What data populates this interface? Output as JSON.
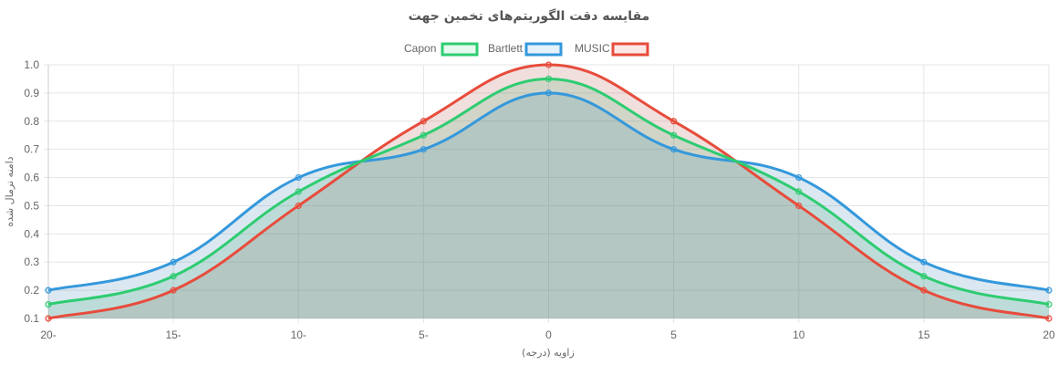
{
  "chart_data": {
    "type": "line",
    "title": "مقایسه دقت الگوریتم‌های تخمین جهت",
    "xlabel": "زاویه (درجه)",
    "ylabel": "دامنه نرمال شده",
    "categories": [
      "20-",
      "15-",
      "10-",
      "5-",
      "0",
      "5",
      "10",
      "15",
      "20"
    ],
    "x": [
      -20,
      -15,
      -10,
      -5,
      0,
      5,
      10,
      15,
      20
    ],
    "ylim": [
      0.1,
      1.0
    ],
    "yticks": [
      "1.0",
      "0.9",
      "0.8",
      "0.7",
      "0.6",
      "0.5",
      "0.4",
      "0.3",
      "0.2",
      "0.1"
    ],
    "grid": true,
    "legend_position": "top-center",
    "series": [
      {
        "name": "MUSIC",
        "color": "#e74c3c",
        "fill": "rgba(231,76,60,0.12)",
        "values": [
          0.1,
          0.2,
          0.5,
          0.8,
          1.0,
          0.8,
          0.5,
          0.2,
          0.1
        ]
      },
      {
        "name": "Bartlett",
        "color": "#3498db",
        "fill": "rgba(52,152,219,0.12)",
        "values": [
          0.2,
          0.3,
          0.6,
          0.7,
          0.9,
          0.7,
          0.6,
          0.3,
          0.2
        ]
      },
      {
        "name": "Capon",
        "color": "#2ecc71",
        "fill": "rgba(46,204,113,0.12)",
        "values": [
          0.15,
          0.25,
          0.55,
          0.75,
          0.95,
          0.75,
          0.55,
          0.25,
          0.15
        ]
      }
    ]
  }
}
